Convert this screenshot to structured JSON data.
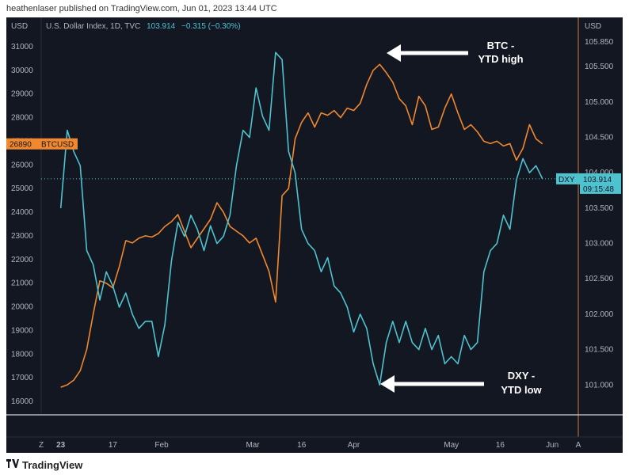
{
  "header": {
    "published_text": "heathenlaser published on TradingView.com, Jun 01, 2023 13:44 UTC"
  },
  "footer": {
    "brand": "TradingView"
  },
  "colors": {
    "background": "#131722",
    "btc": "#f0882f",
    "dxy": "#4ec3cf",
    "axis_divider": "#c97d3f",
    "arrow": "#ffffff",
    "text": "#b2b5be"
  },
  "chart_data": {
    "type": "line",
    "symbol_info": {
      "name": "U.S. Dollar Index, 1D, TVC",
      "price": "103.914",
      "change": "−0.315 (−0.30%)"
    },
    "left_axis": {
      "unit": "USD",
      "range": [
        15500,
        31500
      ],
      "ticks": [
        "16000",
        "17000",
        "18000",
        "19000",
        "20000",
        "21000",
        "22000",
        "23000",
        "24000",
        "25000",
        "26000",
        "27000",
        "28000",
        "29000",
        "30000",
        "31000"
      ],
      "badge": {
        "price": "26890",
        "symbol": "BTCUSD"
      }
    },
    "right_axis": {
      "unit": "USD",
      "range": [
        100.6,
        105.95
      ],
      "ticks": [
        "101.000",
        "101.500",
        "102.000",
        "102.500",
        "103.000",
        "103.500",
        "104.000",
        "104.500",
        "105.000",
        "105.500",
        "105.850"
      ],
      "badge": {
        "symbol": "DXY",
        "price": "103.914",
        "countdown": "09:15:48"
      }
    },
    "x_axis": {
      "range": [
        0,
        148
      ],
      "ticks": [
        {
          "label": "Z",
          "t": -6
        },
        {
          "label": "23",
          "t": 0
        },
        {
          "label": "17",
          "t": 16
        },
        {
          "label": "Feb",
          "t": 31
        },
        {
          "label": "Mar",
          "t": 59
        },
        {
          "label": "16",
          "t": 74
        },
        {
          "label": "Apr",
          "t": 90
        },
        {
          "label": "May",
          "t": 120
        },
        {
          "label": "16",
          "t": 135
        },
        {
          "label": "Jun",
          "t": 151
        },
        {
          "label": "A",
          "t": 159
        }
      ]
    },
    "series": [
      {
        "name": "BTCUSD",
        "axis": "left",
        "color": "#f0882f",
        "t": [
          0,
          2,
          4,
          6,
          8,
          10,
          12,
          14,
          16,
          18,
          20,
          22,
          24,
          26,
          28,
          30,
          32,
          34,
          36,
          38,
          40,
          42,
          44,
          46,
          48,
          50,
          52,
          54,
          56,
          58,
          60,
          62,
          64,
          66,
          68,
          70,
          72,
          74,
          76,
          78,
          80,
          82,
          84,
          86,
          88,
          90,
          92,
          94,
          96,
          98,
          100,
          102,
          104,
          106,
          108,
          110,
          112,
          114,
          116,
          118,
          120,
          122,
          124,
          126,
          128,
          130,
          132,
          134,
          136,
          138,
          140,
          142,
          144,
          146,
          148
        ],
        "values": [
          16600,
          16700,
          16900,
          17300,
          18200,
          19700,
          21100,
          21000,
          20800,
          21700,
          22800,
          22700,
          22900,
          23000,
          22950,
          23100,
          23400,
          23600,
          23900,
          23200,
          22500,
          22900,
          23300,
          23700,
          24400,
          24000,
          23400,
          23200,
          23000,
          22700,
          22900,
          22200,
          21500,
          20200,
          24700,
          25000,
          27100,
          27800,
          28200,
          27600,
          28200,
          28100,
          28300,
          28000,
          28400,
          28300,
          28600,
          29400,
          30000,
          30250,
          29900,
          29500,
          28800,
          28500,
          27700,
          28900,
          28500,
          27500,
          27600,
          28400,
          29000,
          28200,
          27500,
          27700,
          27400,
          27000,
          26900,
          27000,
          26800,
          26900,
          26200,
          26700,
          27700,
          27100,
          26890
        ]
      },
      {
        "name": "DXY",
        "axis": "right",
        "color": "#4ec3cf",
        "t": [
          0,
          2,
          4,
          6,
          8,
          10,
          12,
          14,
          16,
          18,
          20,
          22,
          24,
          26,
          28,
          30,
          32,
          34,
          36,
          38,
          40,
          42,
          44,
          46,
          48,
          50,
          52,
          54,
          56,
          58,
          60,
          62,
          64,
          66,
          68,
          70,
          72,
          74,
          76,
          78,
          80,
          82,
          84,
          86,
          88,
          90,
          92,
          94,
          96,
          98,
          100,
          102,
          104,
          106,
          108,
          110,
          112,
          114,
          116,
          118,
          120,
          122,
          124,
          126,
          128,
          130,
          132,
          134,
          136,
          138,
          140,
          142,
          144,
          146,
          148
        ],
        "values": [
          103.5,
          104.6,
          104.3,
          104.1,
          102.9,
          102.7,
          102.2,
          102.6,
          102.4,
          102.1,
          102.3,
          102.0,
          101.8,
          101.9,
          101.9,
          101.4,
          101.85,
          102.75,
          103.3,
          103.1,
          103.4,
          103.2,
          102.9,
          103.25,
          103.0,
          103.1,
          103.4,
          104.1,
          104.6,
          104.5,
          105.2,
          104.8,
          104.6,
          105.7,
          105.6,
          104.3,
          104.0,
          103.2,
          103.0,
          102.9,
          102.6,
          102.8,
          102.4,
          102.3,
          102.1,
          101.75,
          102.0,
          101.8,
          101.3,
          101.0,
          101.6,
          101.9,
          101.6,
          101.9,
          101.6,
          101.5,
          101.8,
          101.5,
          101.7,
          101.3,
          101.4,
          101.3,
          101.7,
          101.5,
          101.6,
          102.6,
          102.9,
          103.0,
          103.4,
          103.2,
          103.9,
          104.2,
          104.0,
          104.1,
          103.914
        ]
      }
    ],
    "annotations": [
      {
        "name": "btc-ytd-high",
        "lines": [
          "BTC -",
          "YTD high"
        ]
      },
      {
        "name": "dxy-ytd-low",
        "lines": [
          "DXY -",
          "YTD low"
        ]
      }
    ]
  }
}
